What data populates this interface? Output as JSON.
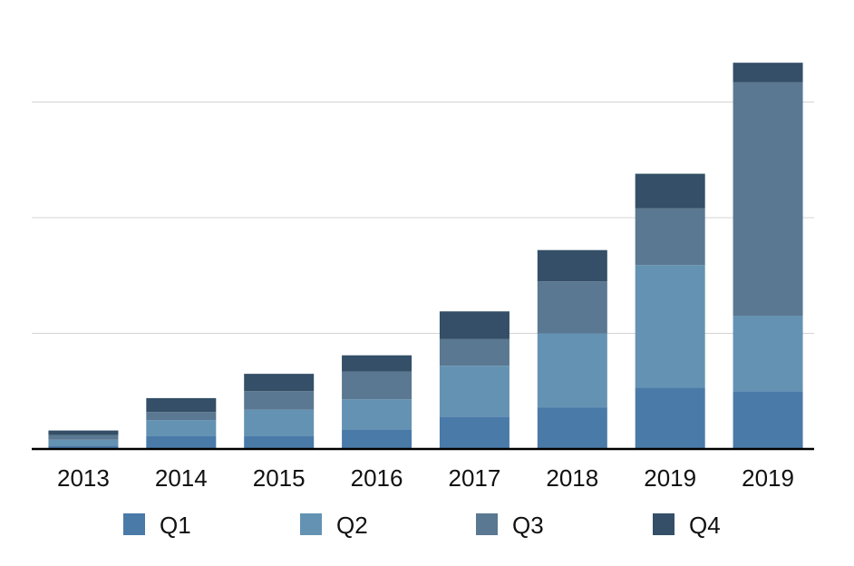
{
  "chart_data": {
    "type": "bar",
    "stacked": true,
    "title": "",
    "xlabel": "",
    "ylabel": "",
    "categories": [
      "2013",
      "2014",
      "2015",
      "2016",
      "2017",
      "2018",
      "2019",
      "2019"
    ],
    "ylim": [
      0,
      400
    ],
    "grid": true,
    "gridlines": [
      100,
      200,
      300
    ],
    "legend_position": "bottom",
    "series": [
      {
        "name": "Q1",
        "color": "#4a7aa8",
        "values": [
          3,
          11,
          11,
          17,
          28,
          36,
          53,
          50
        ]
      },
      {
        "name": "Q2",
        "color": "#6492b3",
        "values": [
          5,
          14,
          23,
          26,
          44,
          64,
          106,
          65
        ]
      },
      {
        "name": "Q3",
        "color": "#5a7891",
        "values": [
          4,
          7,
          16,
          24,
          23,
          45,
          49,
          202
        ]
      },
      {
        "name": "Q4",
        "color": "#344f67",
        "values": [
          4,
          12,
          15,
          14,
          24,
          27,
          30,
          17
        ]
      }
    ]
  }
}
